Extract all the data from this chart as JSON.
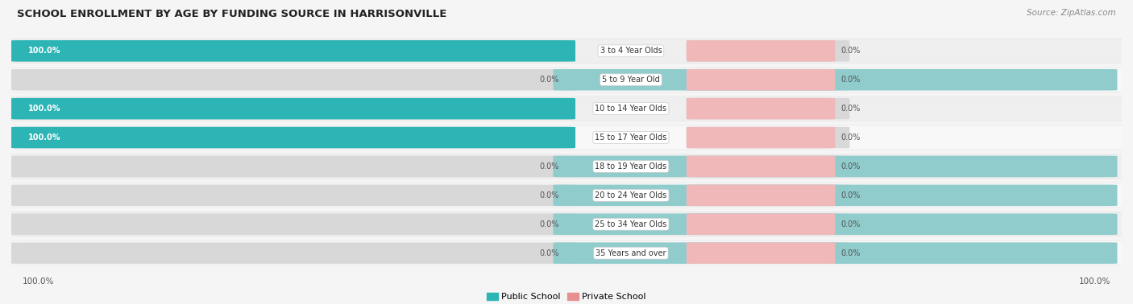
{
  "title": "SCHOOL ENROLLMENT BY AGE BY FUNDING SOURCE IN HARRISONVILLE",
  "source": "Source: ZipAtlas.com",
  "categories": [
    "3 to 4 Year Olds",
    "5 to 9 Year Old",
    "10 to 14 Year Olds",
    "15 to 17 Year Olds",
    "18 to 19 Year Olds",
    "20 to 24 Year Olds",
    "25 to 34 Year Olds",
    "35 Years and over"
  ],
  "public_values": [
    100.0,
    0.0,
    100.0,
    100.0,
    0.0,
    0.0,
    0.0,
    0.0
  ],
  "private_values": [
    0.0,
    0.0,
    0.0,
    0.0,
    0.0,
    0.0,
    0.0,
    0.0
  ],
  "public_color": "#2db5b5",
  "private_color": "#e89090",
  "public_color_light": "#90cccc",
  "private_color_light": "#f0b8b8",
  "row_bg_even": "#efefef",
  "row_bg_odd": "#f8f8f8",
  "fig_bg": "#f5f5f5",
  "axis_label_left": "100.0%",
  "axis_label_right": "100.0%"
}
